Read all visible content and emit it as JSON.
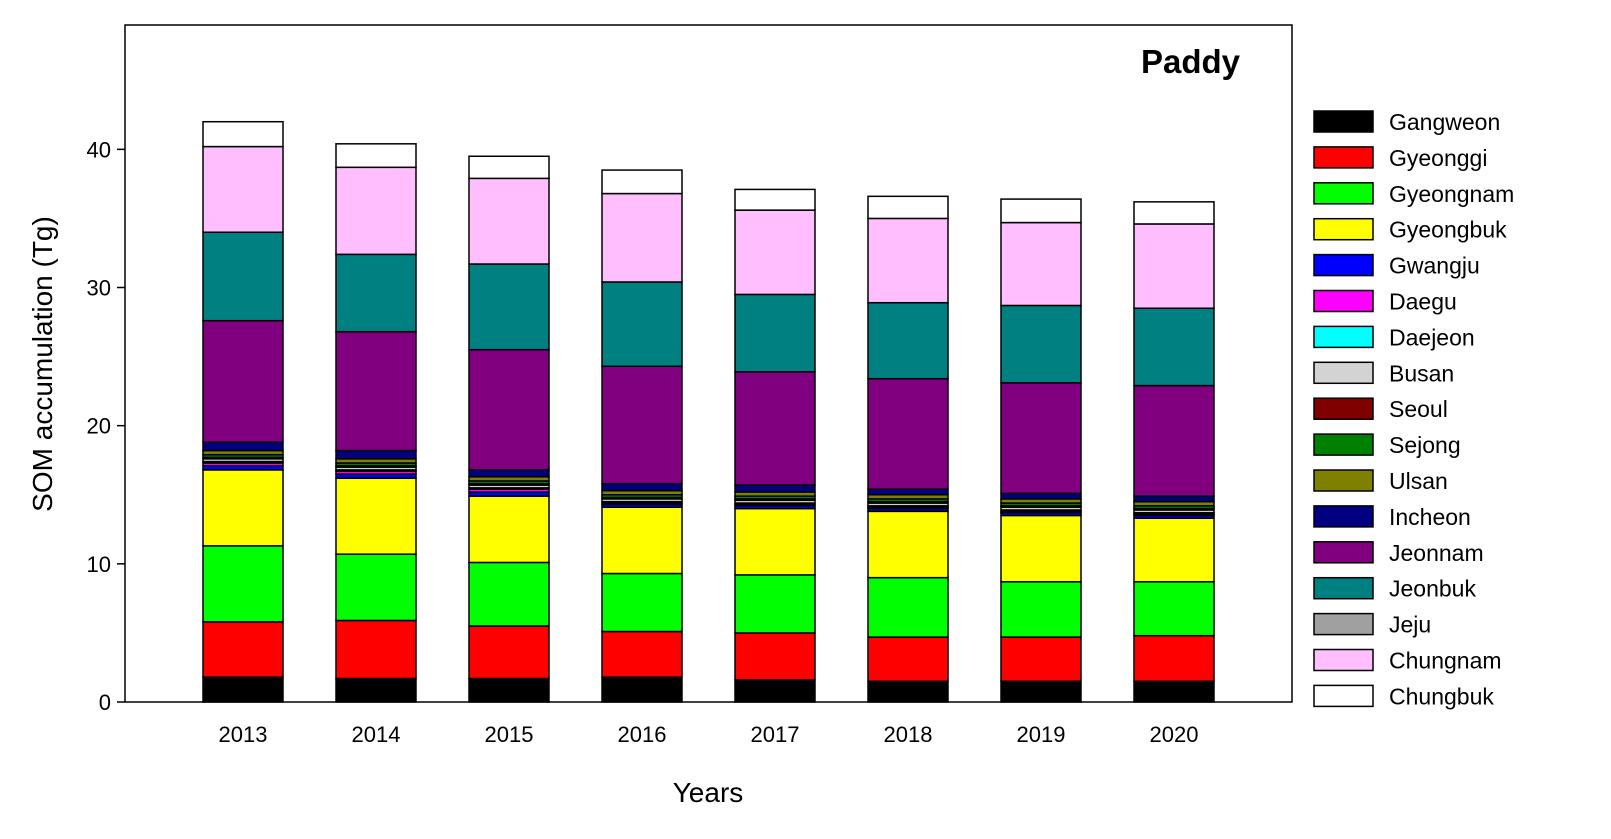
{
  "chart_data": {
    "type": "bar",
    "stacked": true,
    "title": "Paddy",
    "xlabel": "Years",
    "ylabel": "SOM accumulation (Tg)",
    "ylim": [
      0,
      49
    ],
    "yticks": [
      0,
      10,
      20,
      30,
      40
    ],
    "categories": [
      "2013",
      "2014",
      "2015",
      "2016",
      "2017",
      "2018",
      "2019",
      "2020"
    ],
    "legend_position": "right",
    "grid": false,
    "series": [
      {
        "name": "Gangweon",
        "color": "#000000",
        "values": [
          1.8,
          1.7,
          1.7,
          1.8,
          1.6,
          1.5,
          1.5,
          1.5
        ]
      },
      {
        "name": "Gyeonggi",
        "color": "#ff0000",
        "values": [
          4.0,
          4.2,
          3.8,
          3.3,
          3.4,
          3.2,
          3.2,
          3.3
        ]
      },
      {
        "name": "Gyeongnam",
        "color": "#00ff00",
        "values": [
          5.5,
          4.8,
          4.6,
          4.2,
          4.2,
          4.3,
          4.0,
          3.9
        ]
      },
      {
        "name": "Gyeongbuk",
        "color": "#ffff00",
        "values": [
          5.5,
          5.5,
          4.8,
          4.8,
          4.8,
          4.8,
          4.8,
          4.6
        ]
      },
      {
        "name": "Gwangju",
        "color": "#0000ff",
        "values": [
          0.3,
          0.3,
          0.3,
          0.2,
          0.2,
          0.2,
          0.2,
          0.2
        ]
      },
      {
        "name": "Daegu",
        "color": "#ff00ff",
        "values": [
          0.2,
          0.2,
          0.2,
          0.1,
          0.1,
          0.1,
          0.1,
          0.1
        ]
      },
      {
        "name": "Daejeon",
        "color": "#00ffff",
        "values": [
          0.1,
          0.1,
          0.1,
          0.1,
          0.1,
          0.1,
          0.1,
          0.1
        ]
      },
      {
        "name": "Busan",
        "color": "#d3d3d3",
        "values": [
          0.2,
          0.2,
          0.2,
          0.2,
          0.2,
          0.2,
          0.2,
          0.2
        ]
      },
      {
        "name": "Seoul",
        "color": "#800000",
        "values": [
          0.1,
          0.1,
          0.1,
          0.1,
          0.1,
          0.1,
          0.1,
          0.1
        ]
      },
      {
        "name": "Sejong",
        "color": "#008000",
        "values": [
          0.2,
          0.2,
          0.2,
          0.2,
          0.2,
          0.2,
          0.2,
          0.2
        ]
      },
      {
        "name": "Ulsan",
        "color": "#808000",
        "values": [
          0.3,
          0.3,
          0.3,
          0.3,
          0.3,
          0.3,
          0.3,
          0.3
        ]
      },
      {
        "name": "Incheon",
        "color": "#000080",
        "values": [
          0.6,
          0.6,
          0.5,
          0.5,
          0.5,
          0.4,
          0.4,
          0.4
        ]
      },
      {
        "name": "Jeonnam",
        "color": "#800080",
        "values": [
          8.8,
          8.6,
          8.7,
          8.5,
          8.2,
          8.0,
          8.0,
          8.0
        ]
      },
      {
        "name": "Jeonbuk",
        "color": "#008080",
        "values": [
          6.4,
          5.6,
          6.2,
          6.1,
          5.6,
          5.5,
          5.6,
          5.6
        ]
      },
      {
        "name": "Jeju",
        "color": "#a0a0a0",
        "values": [
          0.0,
          0.0,
          0.0,
          0.0,
          0.0,
          0.0,
          0.0,
          0.0
        ]
      },
      {
        "name": "Chungnam",
        "color": "#ffbfff",
        "values": [
          6.2,
          6.3,
          6.2,
          6.4,
          6.1,
          6.1,
          6.0,
          6.1
        ]
      },
      {
        "name": "Chungbuk",
        "color": "#ffffff",
        "values": [
          1.8,
          1.7,
          1.6,
          1.7,
          1.5,
          1.6,
          1.7,
          1.6
        ]
      }
    ]
  }
}
